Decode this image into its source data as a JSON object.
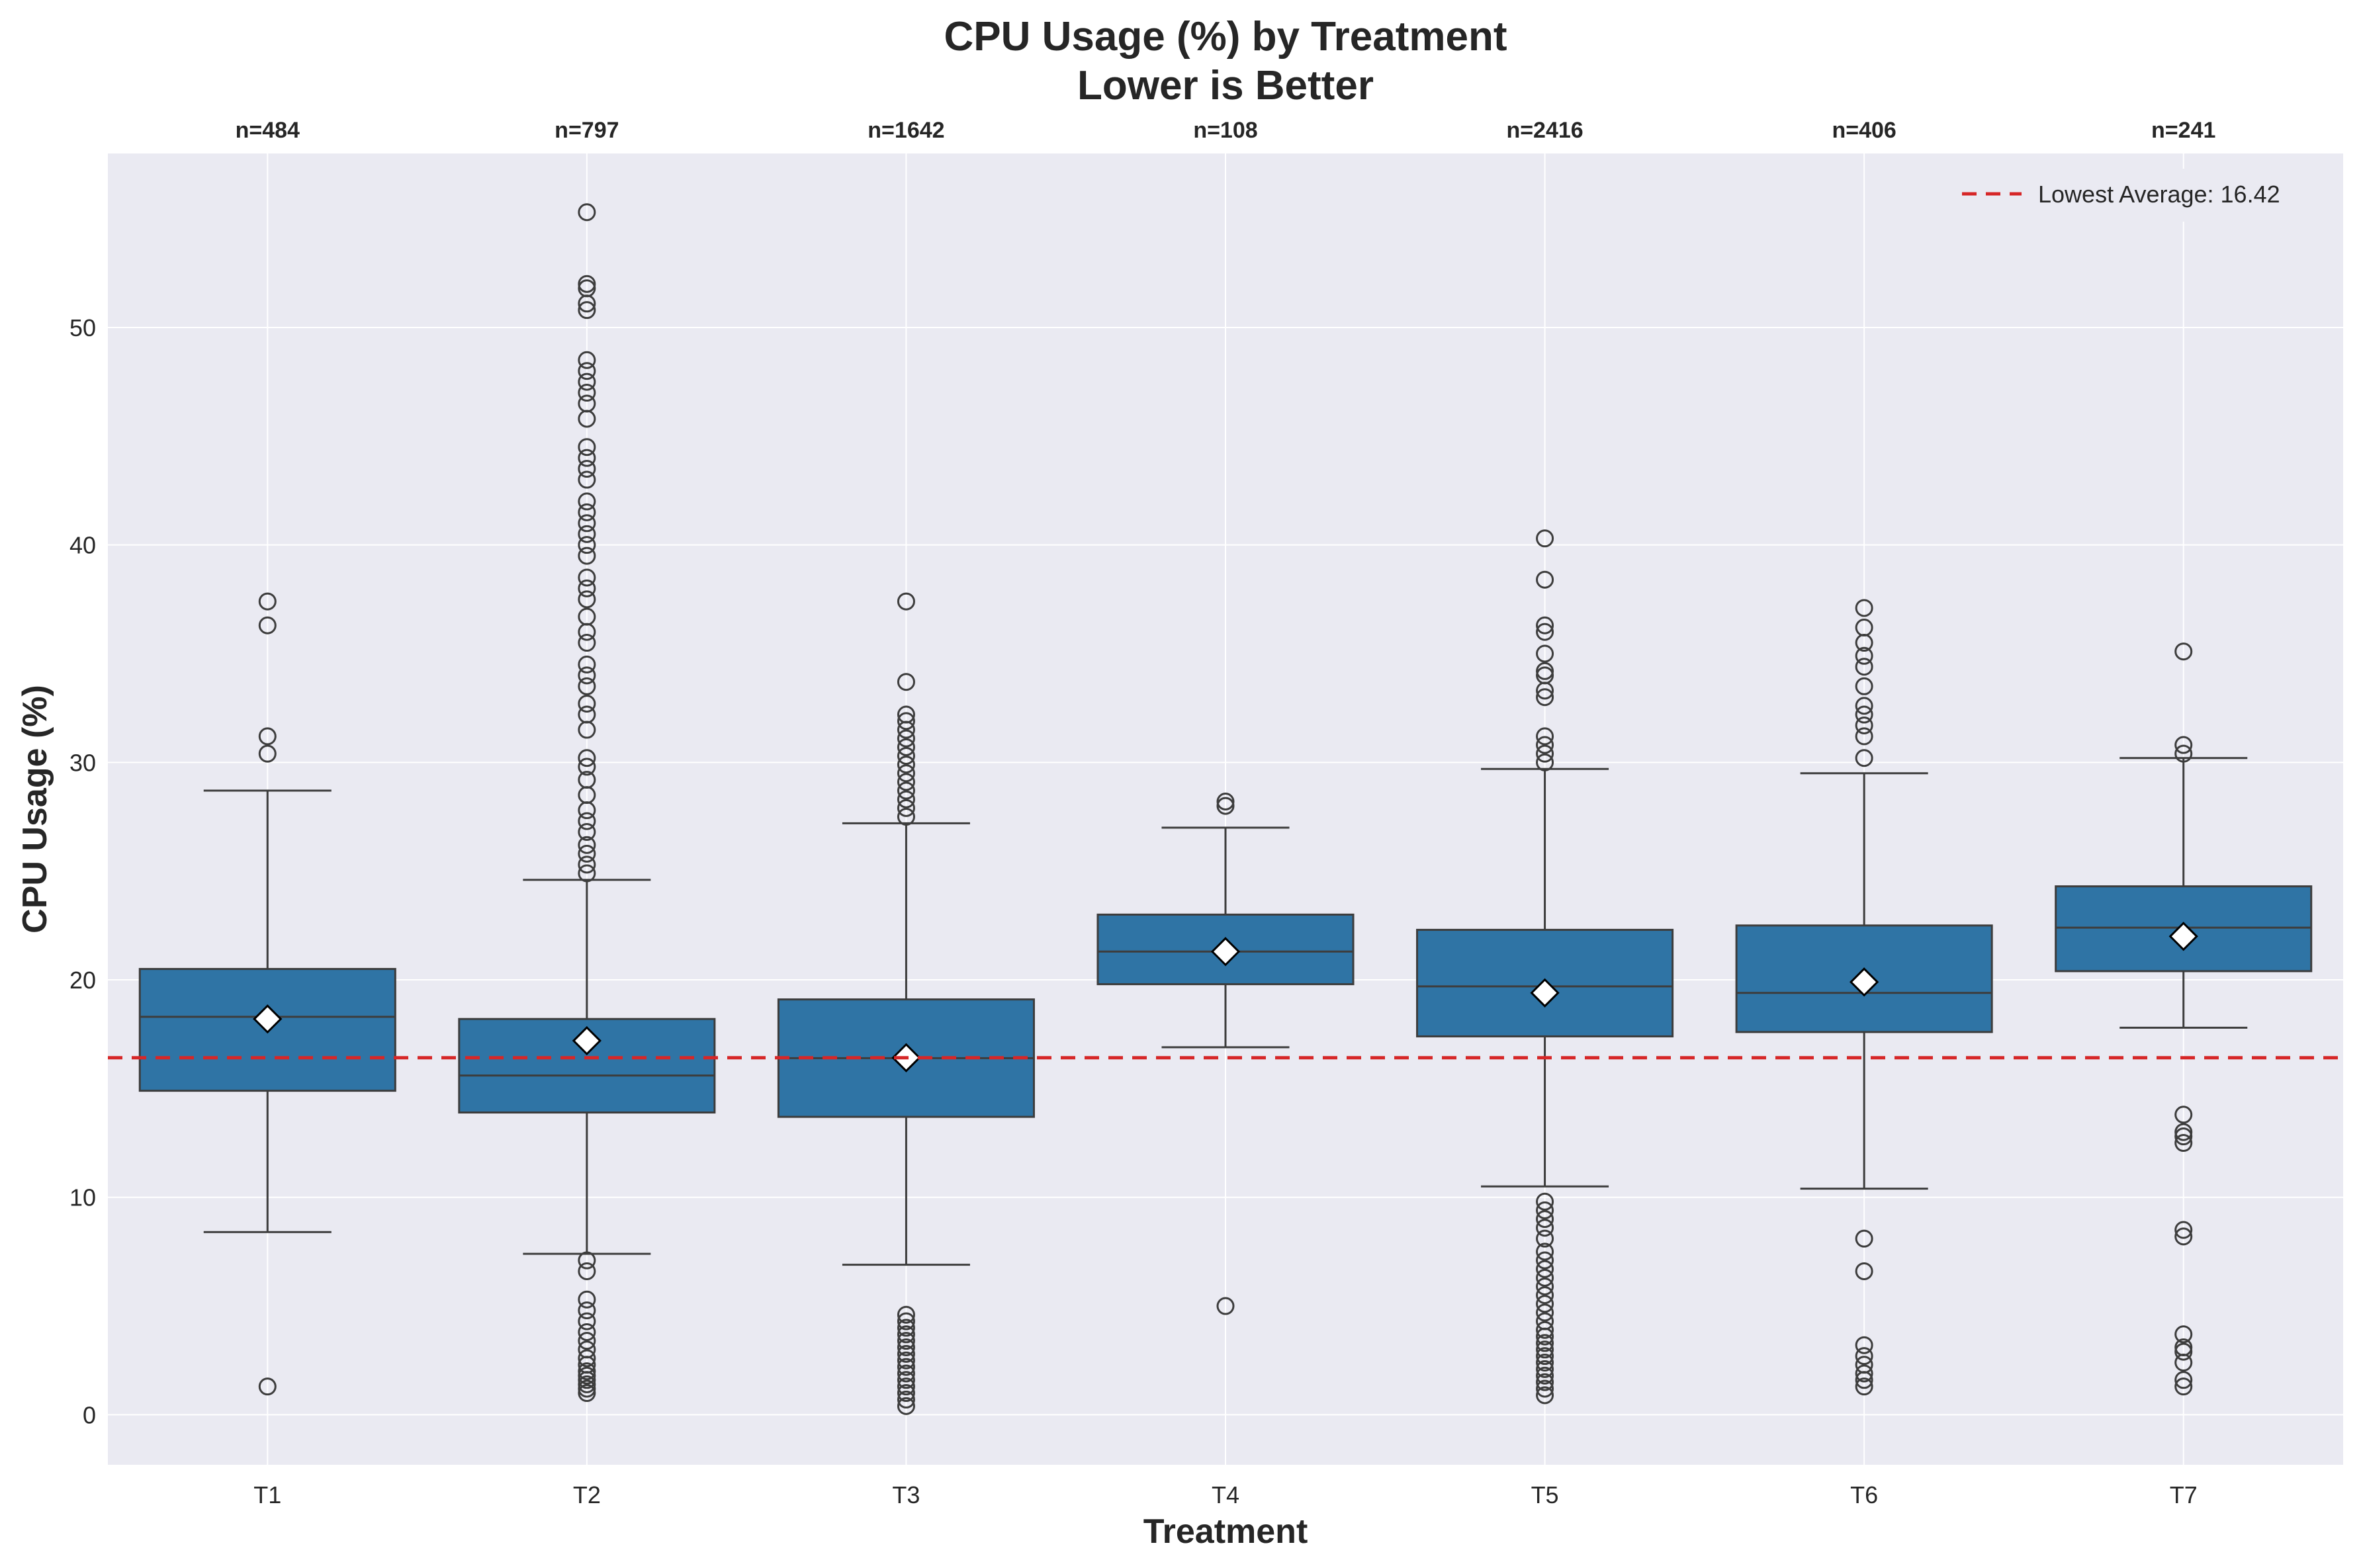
{
  "chart_data": {
    "type": "box",
    "title_line1": "CPU Usage (%) by Treatment",
    "title_line2": "Lower is Better",
    "xlabel": "Treatment",
    "ylabel": "CPU Usage (%)",
    "ylim": [
      -2.3,
      58
    ],
    "yticks": [
      0,
      10,
      20,
      30,
      40,
      50
    ],
    "grid": true,
    "legend_position": "top-right",
    "legend_label": "Lowest Average: 16.42",
    "reference_line": {
      "value": 16.42,
      "style": "dashed"
    },
    "colors": {
      "box": "#2f74a5",
      "edge": "#3d3d3d",
      "reference": "#d62728",
      "background": "#eaeaf2",
      "grid": "#ffffff",
      "mean_marker": "#ffffff"
    },
    "categories": [
      "T1",
      "T2",
      "T3",
      "T4",
      "T5",
      "T6",
      "T7"
    ],
    "boxes": [
      {
        "name": "T1",
        "count_label": "n=484",
        "whisker_low": 8.4,
        "q1": 14.9,
        "median": 18.3,
        "q3": 20.5,
        "whisker_high": 28.7,
        "mean": 18.2,
        "outliers": [
          1.3,
          30.4,
          31.2,
          36.3,
          37.4
        ]
      },
      {
        "name": "T2",
        "count_label": "n=797",
        "whisker_low": 7.4,
        "q1": 13.9,
        "median": 15.6,
        "q3": 18.2,
        "whisker_high": 24.6,
        "mean": 17.2,
        "outliers": [
          1.0,
          1.2,
          1.4,
          1.6,
          1.8,
          2.0,
          2.3,
          2.6,
          3.0,
          3.4,
          3.8,
          4.3,
          4.8,
          5.3,
          6.6,
          7.1,
          24.9,
          25.3,
          25.8,
          26.2,
          26.8,
          27.3,
          27.8,
          28.5,
          29.2,
          29.8,
          30.2,
          31.5,
          32.2,
          32.7,
          33.5,
          34.0,
          34.5,
          35.5,
          36.0,
          36.7,
          37.5,
          38.0,
          38.5,
          39.5,
          40.0,
          40.5,
          41.0,
          41.5,
          42.0,
          43.0,
          43.5,
          44.0,
          44.5,
          45.8,
          46.5,
          47.0,
          47.5,
          48.0,
          48.5,
          50.8,
          51.1,
          51.8,
          52.0,
          55.3
        ]
      },
      {
        "name": "T3",
        "count_label": "n=1642",
        "whisker_low": 6.9,
        "q1": 13.7,
        "median": 16.4,
        "q3": 19.1,
        "whisker_high": 27.2,
        "mean": 16.42,
        "outliers": [
          0.4,
          0.7,
          1.0,
          1.3,
          1.6,
          1.9,
          2.2,
          2.5,
          2.8,
          3.1,
          3.4,
          3.7,
          4.0,
          4.3,
          4.6,
          27.5,
          27.9,
          28.3,
          28.7,
          29.1,
          29.5,
          29.9,
          30.3,
          30.7,
          31.1,
          31.5,
          31.9,
          32.2,
          33.7,
          37.4
        ]
      },
      {
        "name": "T4",
        "count_label": "n=108",
        "whisker_low": 16.9,
        "q1": 19.8,
        "median": 21.3,
        "q3": 23.0,
        "whisker_high": 27.0,
        "mean": 21.3,
        "outliers": [
          5.0,
          28.0,
          28.2
        ]
      },
      {
        "name": "T5",
        "count_label": "n=2416",
        "whisker_low": 10.5,
        "q1": 17.4,
        "median": 19.7,
        "q3": 22.3,
        "whisker_high": 29.7,
        "mean": 19.4,
        "outliers": [
          0.9,
          1.2,
          1.5,
          1.8,
          2.1,
          2.4,
          2.7,
          3.0,
          3.3,
          3.6,
          3.9,
          4.3,
          4.7,
          5.1,
          5.5,
          5.9,
          6.3,
          6.7,
          7.1,
          7.5,
          8.1,
          8.6,
          9.0,
          9.4,
          9.8,
          30.0,
          30.4,
          30.8,
          31.2,
          33.0,
          33.3,
          34.0,
          34.2,
          35.0,
          36.0,
          36.3,
          38.4,
          40.3
        ]
      },
      {
        "name": "T6",
        "count_label": "n=406",
        "whisker_low": 10.4,
        "q1": 17.6,
        "median": 19.4,
        "q3": 22.5,
        "whisker_high": 29.5,
        "mean": 19.9,
        "outliers": [
          1.3,
          1.6,
          1.9,
          2.3,
          2.7,
          3.2,
          6.6,
          8.1,
          30.2,
          31.2,
          31.7,
          32.2,
          32.6,
          33.5,
          34.4,
          34.9,
          35.5,
          36.2,
          37.1
        ]
      },
      {
        "name": "T7",
        "count_label": "n=241",
        "whisker_low": 17.8,
        "q1": 20.4,
        "median": 22.4,
        "q3": 24.3,
        "whisker_high": 30.2,
        "mean": 22.0,
        "outliers": [
          1.3,
          1.6,
          2.4,
          2.9,
          3.1,
          3.7,
          8.2,
          8.5,
          12.5,
          12.8,
          13.0,
          13.8,
          30.4,
          30.8,
          35.1
        ]
      }
    ]
  }
}
